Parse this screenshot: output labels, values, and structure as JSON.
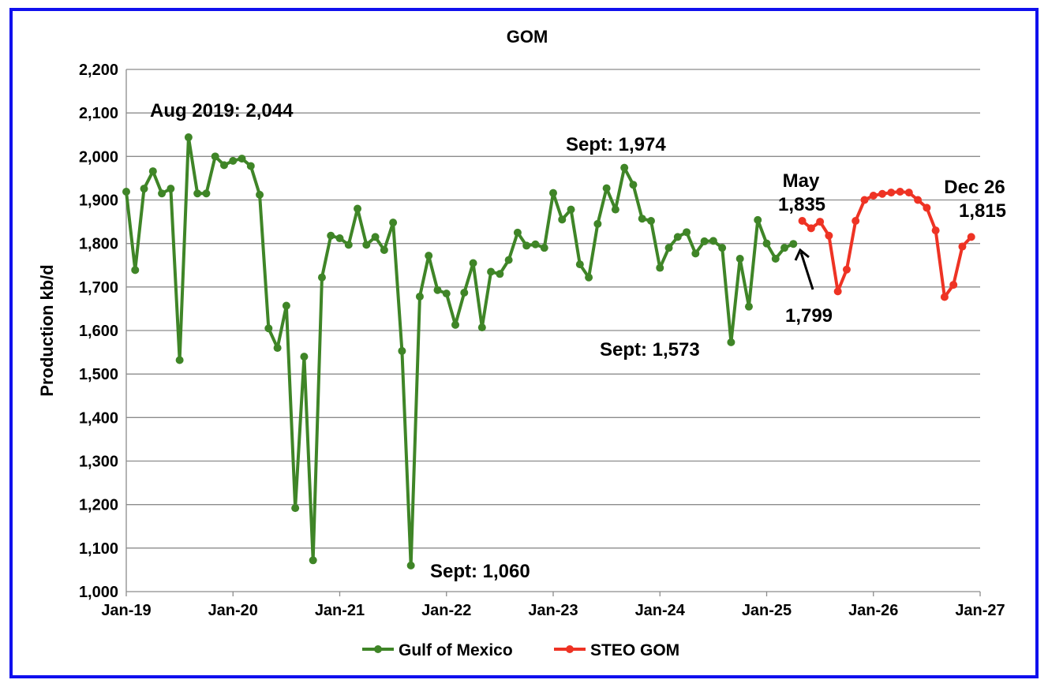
{
  "chart_data": {
    "type": "line",
    "title": "GOM",
    "xlabel": "",
    "ylabel": "Production kb/d",
    "ylim": [
      1000,
      2200
    ],
    "yticks": [
      "1,000",
      "1,100",
      "1,200",
      "1,300",
      "1,400",
      "1,500",
      "1,600",
      "1,700",
      "1,800",
      "1,900",
      "2,000",
      "2,100",
      "2,200"
    ],
    "xticks": [
      "Jan-19",
      "Jan-20",
      "Jan-21",
      "Jan-22",
      "Jan-23",
      "Jan-24",
      "Jan-25",
      "Jan-26",
      "Jan-27"
    ],
    "grid": "horizontal",
    "legend_position": "bottom",
    "colors": {
      "green": "#3f8527",
      "red": "#ee3324",
      "border": "#1010ee"
    },
    "series": [
      {
        "name": "Gulf of Mexico",
        "start": "Jan-19",
        "values": [
          1919,
          1739,
          1926,
          1966,
          1915,
          1926,
          1532,
          2044,
          1915,
          1915,
          2000,
          1980,
          1990,
          1995,
          1978,
          1912,
          1605,
          1560,
          1657,
          1192,
          1540,
          1072,
          1722,
          1818,
          1812,
          1797,
          1880,
          1797,
          1815,
          1785,
          1848,
          1553,
          1060,
          1678,
          1772,
          1693,
          1685,
          1613,
          1687,
          1755,
          1607,
          1735,
          1730,
          1762,
          1825,
          1795,
          1798,
          1790,
          1916,
          1855,
          1878,
          1752,
          1722,
          1845,
          1927,
          1878,
          1974,
          1935,
          1857,
          1852,
          1744,
          1790,
          1815,
          1826,
          1777,
          1805,
          1806,
          1790,
          1573,
          1765,
          1655,
          1854,
          1800,
          1765,
          1790,
          1799
        ]
      },
      {
        "name": "STEO GOM",
        "start": "May-25",
        "values": [
          1852,
          1835,
          1850,
          1818,
          1690,
          1740,
          1852,
          1900,
          1910,
          1914,
          1917,
          1919,
          1917,
          1900,
          1882,
          1830,
          1677,
          1705,
          1793,
          1815
        ]
      }
    ],
    "annotations": [
      {
        "text": "Aug 2019: 2,044"
      },
      {
        "text": "Sept: 1,060"
      },
      {
        "text": "Sept: 1,974"
      },
      {
        "text": "Sept: 1,573"
      },
      {
        "text": "May"
      },
      {
        "text": "1,835"
      },
      {
        "text": "1,799"
      },
      {
        "text": "Dec 26"
      },
      {
        "text": "1,815"
      }
    ]
  }
}
